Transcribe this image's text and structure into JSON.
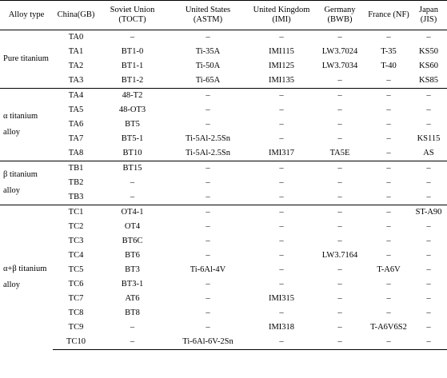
{
  "headers": [
    {
      "line1": "Alloy type",
      "line2": ""
    },
    {
      "line1": "China(GB)",
      "line2": ""
    },
    {
      "line1": "Soviet Union",
      "line2": "(TOCT)"
    },
    {
      "line1": "United States",
      "line2": "(ASTM)"
    },
    {
      "line1": "United Kingdom",
      "line2": "(IMI)"
    },
    {
      "line1": "Germany (BWB)",
      "line2": ""
    },
    {
      "line1": "France (NF)",
      "line2": ""
    },
    {
      "line1": "Japan (JIS)",
      "line2": ""
    }
  ],
  "groups": [
    {
      "label_line1": "Pure titanium",
      "label_line2": ""
    },
    {
      "label_line1": "α titanium",
      "label_line2": "alloy"
    },
    {
      "label_line1": "β titanium",
      "label_line2": "alloy"
    },
    {
      "label_line1": "α+β titanium",
      "label_line2": "alloy"
    }
  ],
  "rows": [
    [
      "TA0",
      "–",
      "–",
      "–",
      "–",
      "–",
      "–"
    ],
    [
      "TA1",
      "BT1-0",
      "Ti-35A",
      "IMI115",
      "LW3.7024",
      "T-35",
      "KS50"
    ],
    [
      "TA2",
      "BT1-1",
      "Ti-50A",
      "IMI125",
      "LW3.7034",
      "T-40",
      "KS60"
    ],
    [
      "TA3",
      "BT1-2",
      "Ti-65A",
      "IMI135",
      "–",
      "–",
      "KS85"
    ],
    [
      "TA4",
      "48-T2",
      "–",
      "–",
      "–",
      "–",
      "–"
    ],
    [
      "TA5",
      "48-OT3",
      "–",
      "–",
      "–",
      "–",
      "–"
    ],
    [
      "TA6",
      "BT5",
      "–",
      "–",
      "–",
      "–",
      "–"
    ],
    [
      "TA7",
      "BT5-1",
      "Ti-5Al-2.5Sn",
      "–",
      "–",
      "–",
      "KS115"
    ],
    [
      "TA8",
      "BT10",
      "Ti-5Al-2.5Sn",
      "IMI317",
      "TA5E",
      "–",
      "AS"
    ],
    [
      "TB1",
      "BT15",
      "–",
      "–",
      "–",
      "–",
      "–"
    ],
    [
      "TB2",
      "–",
      "–",
      "–",
      "–",
      "–",
      "–"
    ],
    [
      "TB3",
      "–",
      "–",
      "–",
      "–",
      "–",
      "–"
    ],
    [
      "TC1",
      "OT4-1",
      "–",
      "–",
      "–",
      "–",
      "ST-A90"
    ],
    [
      "TC2",
      "OT4",
      "–",
      "–",
      "–",
      "–",
      "–"
    ],
    [
      "TC3",
      "BT6C",
      "–",
      "–",
      "–",
      "–",
      "–"
    ],
    [
      "TC4",
      "BT6",
      "–",
      "–",
      "LW3.7164",
      "–",
      "–"
    ],
    [
      "TC5",
      "BT3",
      "Ti-6Al-4V",
      "–",
      "–",
      "T-A6V",
      "–"
    ],
    [
      "TC6",
      "BT3-1",
      "–",
      "–",
      "–",
      "–",
      "–"
    ],
    [
      "TC7",
      "AT6",
      "–",
      "IMI315",
      "–",
      "–",
      "–"
    ],
    [
      "TC8",
      "BT8",
      "–",
      "–",
      "–",
      "–",
      "–"
    ],
    [
      "TC9",
      "–",
      "–",
      "IMI318",
      "–",
      "T-A6V6S2",
      "–"
    ],
    [
      "TC10",
      "–",
      "Ti-6Al-6V-2Sn",
      "–",
      "–",
      "–",
      "–"
    ]
  ]
}
